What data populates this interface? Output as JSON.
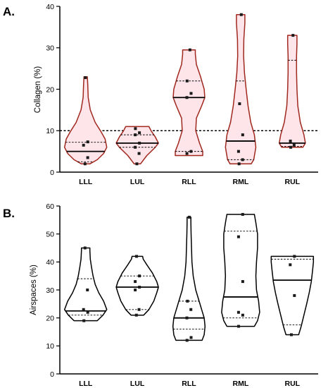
{
  "colors": {
    "collagen_violin": "#a0281e",
    "collagen_fill": "#fde5ea",
    "airspace_violin": "#000000",
    "point": "#1a1a1a"
  },
  "chart_data": [
    {
      "panel_label": "A.",
      "type": "violin",
      "ylabel": "Collagen (%)",
      "ylim": [
        0,
        40
      ],
      "yticks": [
        0,
        10,
        20,
        30,
        40
      ],
      "reference_line": 10,
      "categories": [
        "LLL",
        "LUL",
        "RLL",
        "RML",
        "RUL"
      ],
      "groups": [
        {
          "category": "LLL",
          "min": 2,
          "max": 23,
          "q1": 2.5,
          "median": 5,
          "q3": 7.2,
          "points": [
            2,
            3.5,
            6.5,
            7.3,
            22.8
          ],
          "shape": [
            [
              2,
              0.2
            ],
            [
              3,
              0.55
            ],
            [
              4.5,
              0.85
            ],
            [
              6,
              1.0
            ],
            [
              8,
              0.92
            ],
            [
              10,
              0.7
            ],
            [
              12,
              0.45
            ],
            [
              15,
              0.22
            ],
            [
              18,
              0.12
            ],
            [
              21,
              0.1
            ],
            [
              23,
              0.08
            ]
          ]
        },
        {
          "category": "LUL",
          "min": 2,
          "max": 11,
          "q1": 6,
          "median": 7,
          "q3": 9,
          "points": [
            2,
            4.5,
            6,
            7,
            9,
            9.5,
            10.5
          ],
          "shape": [
            [
              2,
              0.15
            ],
            [
              4,
              0.45
            ],
            [
              6,
              0.85
            ],
            [
              7,
              1.0
            ],
            [
              8.5,
              0.85
            ],
            [
              10,
              0.65
            ],
            [
              11,
              0.55
            ]
          ]
        },
        {
          "category": "RLL",
          "min": 4,
          "max": 29.5,
          "q1": 5,
          "median": 18,
          "q3": 22,
          "points": [
            4.5,
            5,
            18,
            19,
            22,
            29.5
          ],
          "shape": [
            [
              4,
              0.65
            ],
            [
              5,
              0.65
            ],
            [
              7,
              0.5
            ],
            [
              10,
              0.32
            ],
            [
              13,
              0.35
            ],
            [
              16,
              0.6
            ],
            [
              18,
              0.75
            ],
            [
              20,
              0.72
            ],
            [
              23,
              0.55
            ],
            [
              26,
              0.35
            ],
            [
              28.5,
              0.3
            ],
            [
              29.5,
              0.3
            ]
          ]
        },
        {
          "category": "RML",
          "min": 2,
          "max": 38,
          "q1": 3,
          "median": 7.5,
          "q3": 22,
          "points": [
            2,
            3,
            5,
            9,
            16.5,
            38
          ],
          "shape": [
            [
              2,
              0.5
            ],
            [
              3,
              0.62
            ],
            [
              6,
              0.72
            ],
            [
              9,
              0.65
            ],
            [
              12,
              0.48
            ],
            [
              16,
              0.35
            ],
            [
              20,
              0.26
            ],
            [
              24,
              0.18
            ],
            [
              28,
              0.14
            ],
            [
              32,
              0.15
            ],
            [
              36,
              0.2
            ],
            [
              38,
              0.2
            ]
          ]
        },
        {
          "category": "RUL",
          "min": 6,
          "max": 33,
          "q1": 6.2,
          "median": 7,
          "q3": 27,
          "points": [
            6,
            6.5,
            7.5,
            33
          ],
          "shape": [
            [
              6,
              0.5
            ],
            [
              7,
              0.62
            ],
            [
              9,
              0.55
            ],
            [
              12,
              0.38
            ],
            [
              16,
              0.26
            ],
            [
              20,
              0.22
            ],
            [
              24,
              0.2
            ],
            [
              28,
              0.2
            ],
            [
              31,
              0.22
            ],
            [
              33,
              0.22
            ]
          ]
        }
      ]
    },
    {
      "panel_label": "B.",
      "type": "violin",
      "ylabel": "Airspaces (%)",
      "ylim": [
        0,
        60
      ],
      "yticks": [
        0,
        10,
        20,
        30,
        40,
        50,
        60
      ],
      "categories": [
        "LLL",
        "LUL",
        "RLL",
        "RML",
        "RUL"
      ],
      "groups": [
        {
          "category": "LLL",
          "min": 19,
          "max": 45,
          "q1": 21,
          "median": 22.5,
          "q3": 34,
          "points": [
            19,
            22,
            23,
            30,
            45
          ],
          "shape": [
            [
              19,
              0.55
            ],
            [
              21,
              0.82
            ],
            [
              23,
              1.0
            ],
            [
              26,
              0.85
            ],
            [
              29,
              0.62
            ],
            [
              32,
              0.45
            ],
            [
              35,
              0.35
            ],
            [
              38,
              0.28
            ],
            [
              41,
              0.22
            ],
            [
              44,
              0.2
            ],
            [
              45,
              0.2
            ]
          ]
        },
        {
          "category": "LUL",
          "min": 21,
          "max": 42,
          "q1": 23,
          "median": 31,
          "q3": 35,
          "points": [
            21,
            23,
            30,
            31,
            33,
            35,
            42
          ],
          "shape": [
            [
              21,
              0.3
            ],
            [
              23,
              0.55
            ],
            [
              26,
              0.78
            ],
            [
              29,
              0.92
            ],
            [
              31,
              1.0
            ],
            [
              33,
              0.92
            ],
            [
              36,
              0.72
            ],
            [
              39,
              0.45
            ],
            [
              41,
              0.28
            ],
            [
              42,
              0.25
            ]
          ]
        },
        {
          "category": "RLL",
          "min": 12,
          "max": 56,
          "q1": 16,
          "median": 20,
          "q3": 26,
          "points": [
            12,
            13,
            20,
            23,
            26,
            56
          ],
          "shape": [
            [
              12,
              0.62
            ],
            [
              14,
              0.72
            ],
            [
              17,
              0.76
            ],
            [
              20,
              0.72
            ],
            [
              23,
              0.6
            ],
            [
              26,
              0.48
            ],
            [
              30,
              0.32
            ],
            [
              35,
              0.2
            ],
            [
              40,
              0.14
            ],
            [
              45,
              0.12
            ],
            [
              50,
              0.1
            ],
            [
              54,
              0.09
            ],
            [
              56,
              0.09
            ]
          ]
        },
        {
          "category": "RML",
          "min": 17,
          "max": 57,
          "q1": 20,
          "median": 27.5,
          "q3": 51,
          "points": [
            17,
            21,
            22,
            33,
            49,
            57
          ],
          "shape": [
            [
              17,
              0.65
            ],
            [
              19,
              0.8
            ],
            [
              22,
              0.9
            ],
            [
              26,
              0.85
            ],
            [
              30,
              0.75
            ],
            [
              35,
              0.72
            ],
            [
              40,
              0.75
            ],
            [
              45,
              0.8
            ],
            [
              50,
              0.8
            ],
            [
              54,
              0.72
            ],
            [
              57,
              0.65
            ]
          ]
        },
        {
          "category": "RUL",
          "min": 14,
          "max": 42,
          "q1": 17.5,
          "median": 33.5,
          "q3": 41,
          "points": [
            14,
            28,
            39,
            42
          ],
          "shape": [
            [
              14,
              0.3
            ],
            [
              17,
              0.42
            ],
            [
              21,
              0.55
            ],
            [
              25,
              0.68
            ],
            [
              29,
              0.8
            ],
            [
              33,
              0.9
            ],
            [
              37,
              0.96
            ],
            [
              40,
              1.0
            ],
            [
              42,
              1.0
            ]
          ]
        }
      ]
    }
  ]
}
